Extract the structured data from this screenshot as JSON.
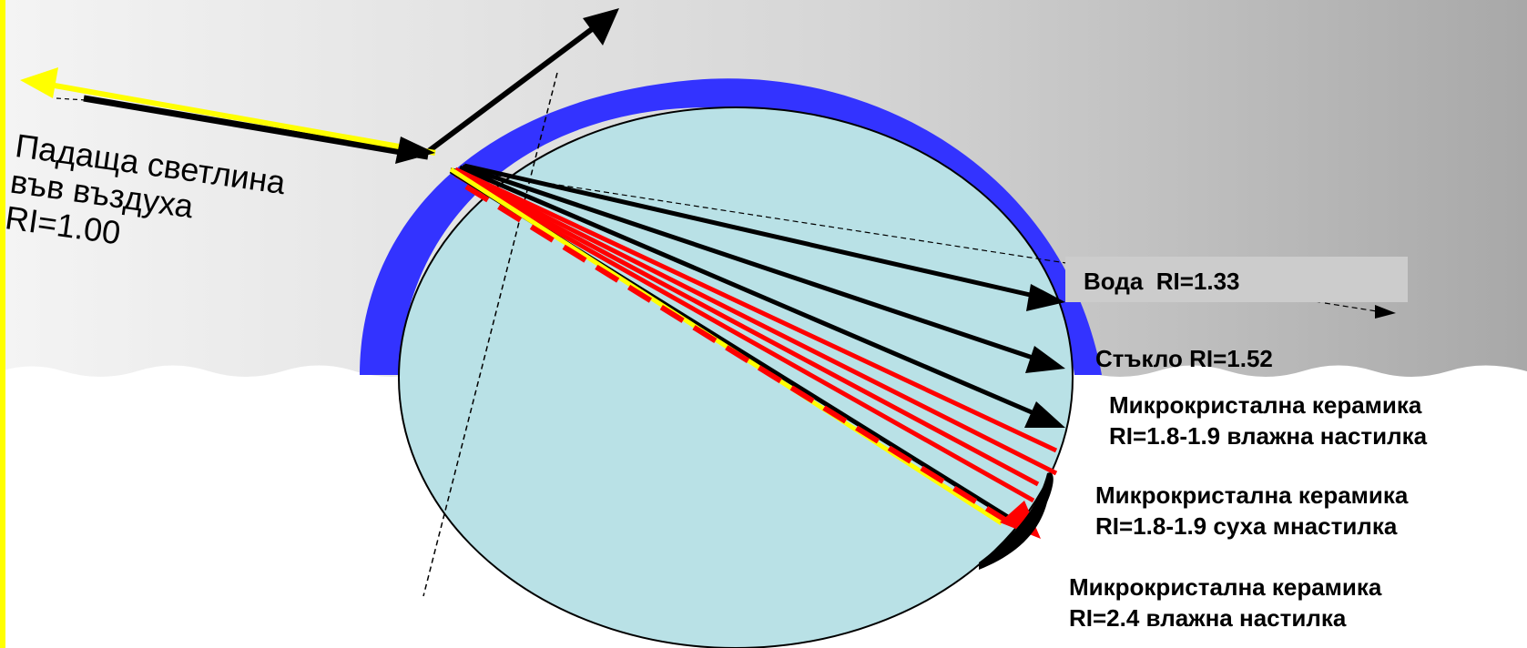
{
  "incident": {
    "line1": "Падаща светлина",
    "line2": "във въздуха",
    "line3": "RI=1.00"
  },
  "water": {
    "label": "Вода  RI=1.33"
  },
  "glass": {
    "label": "Стъкло RI=1.52"
  },
  "ceramic_wet": {
    "line1": "Микрокристална керамика",
    "line2": "RI=1.8-1.9 влажна настилка"
  },
  "ceramic_dry": {
    "line1": "Микрокристална керамика",
    "line2": "RI=1.8-1.9 суха мнастилка"
  },
  "ceramic_24": {
    "line1": "Микрокристална керамика",
    "line2": "RI=2.4 влажна настилка"
  },
  "colors": {
    "water_shell": "#3333ff",
    "bead": "#b9e1e6",
    "incident_ray": "#ffff00",
    "refracted_ray": "#ff0000",
    "arrow": "#000000",
    "left_edge": "#ffff00"
  }
}
